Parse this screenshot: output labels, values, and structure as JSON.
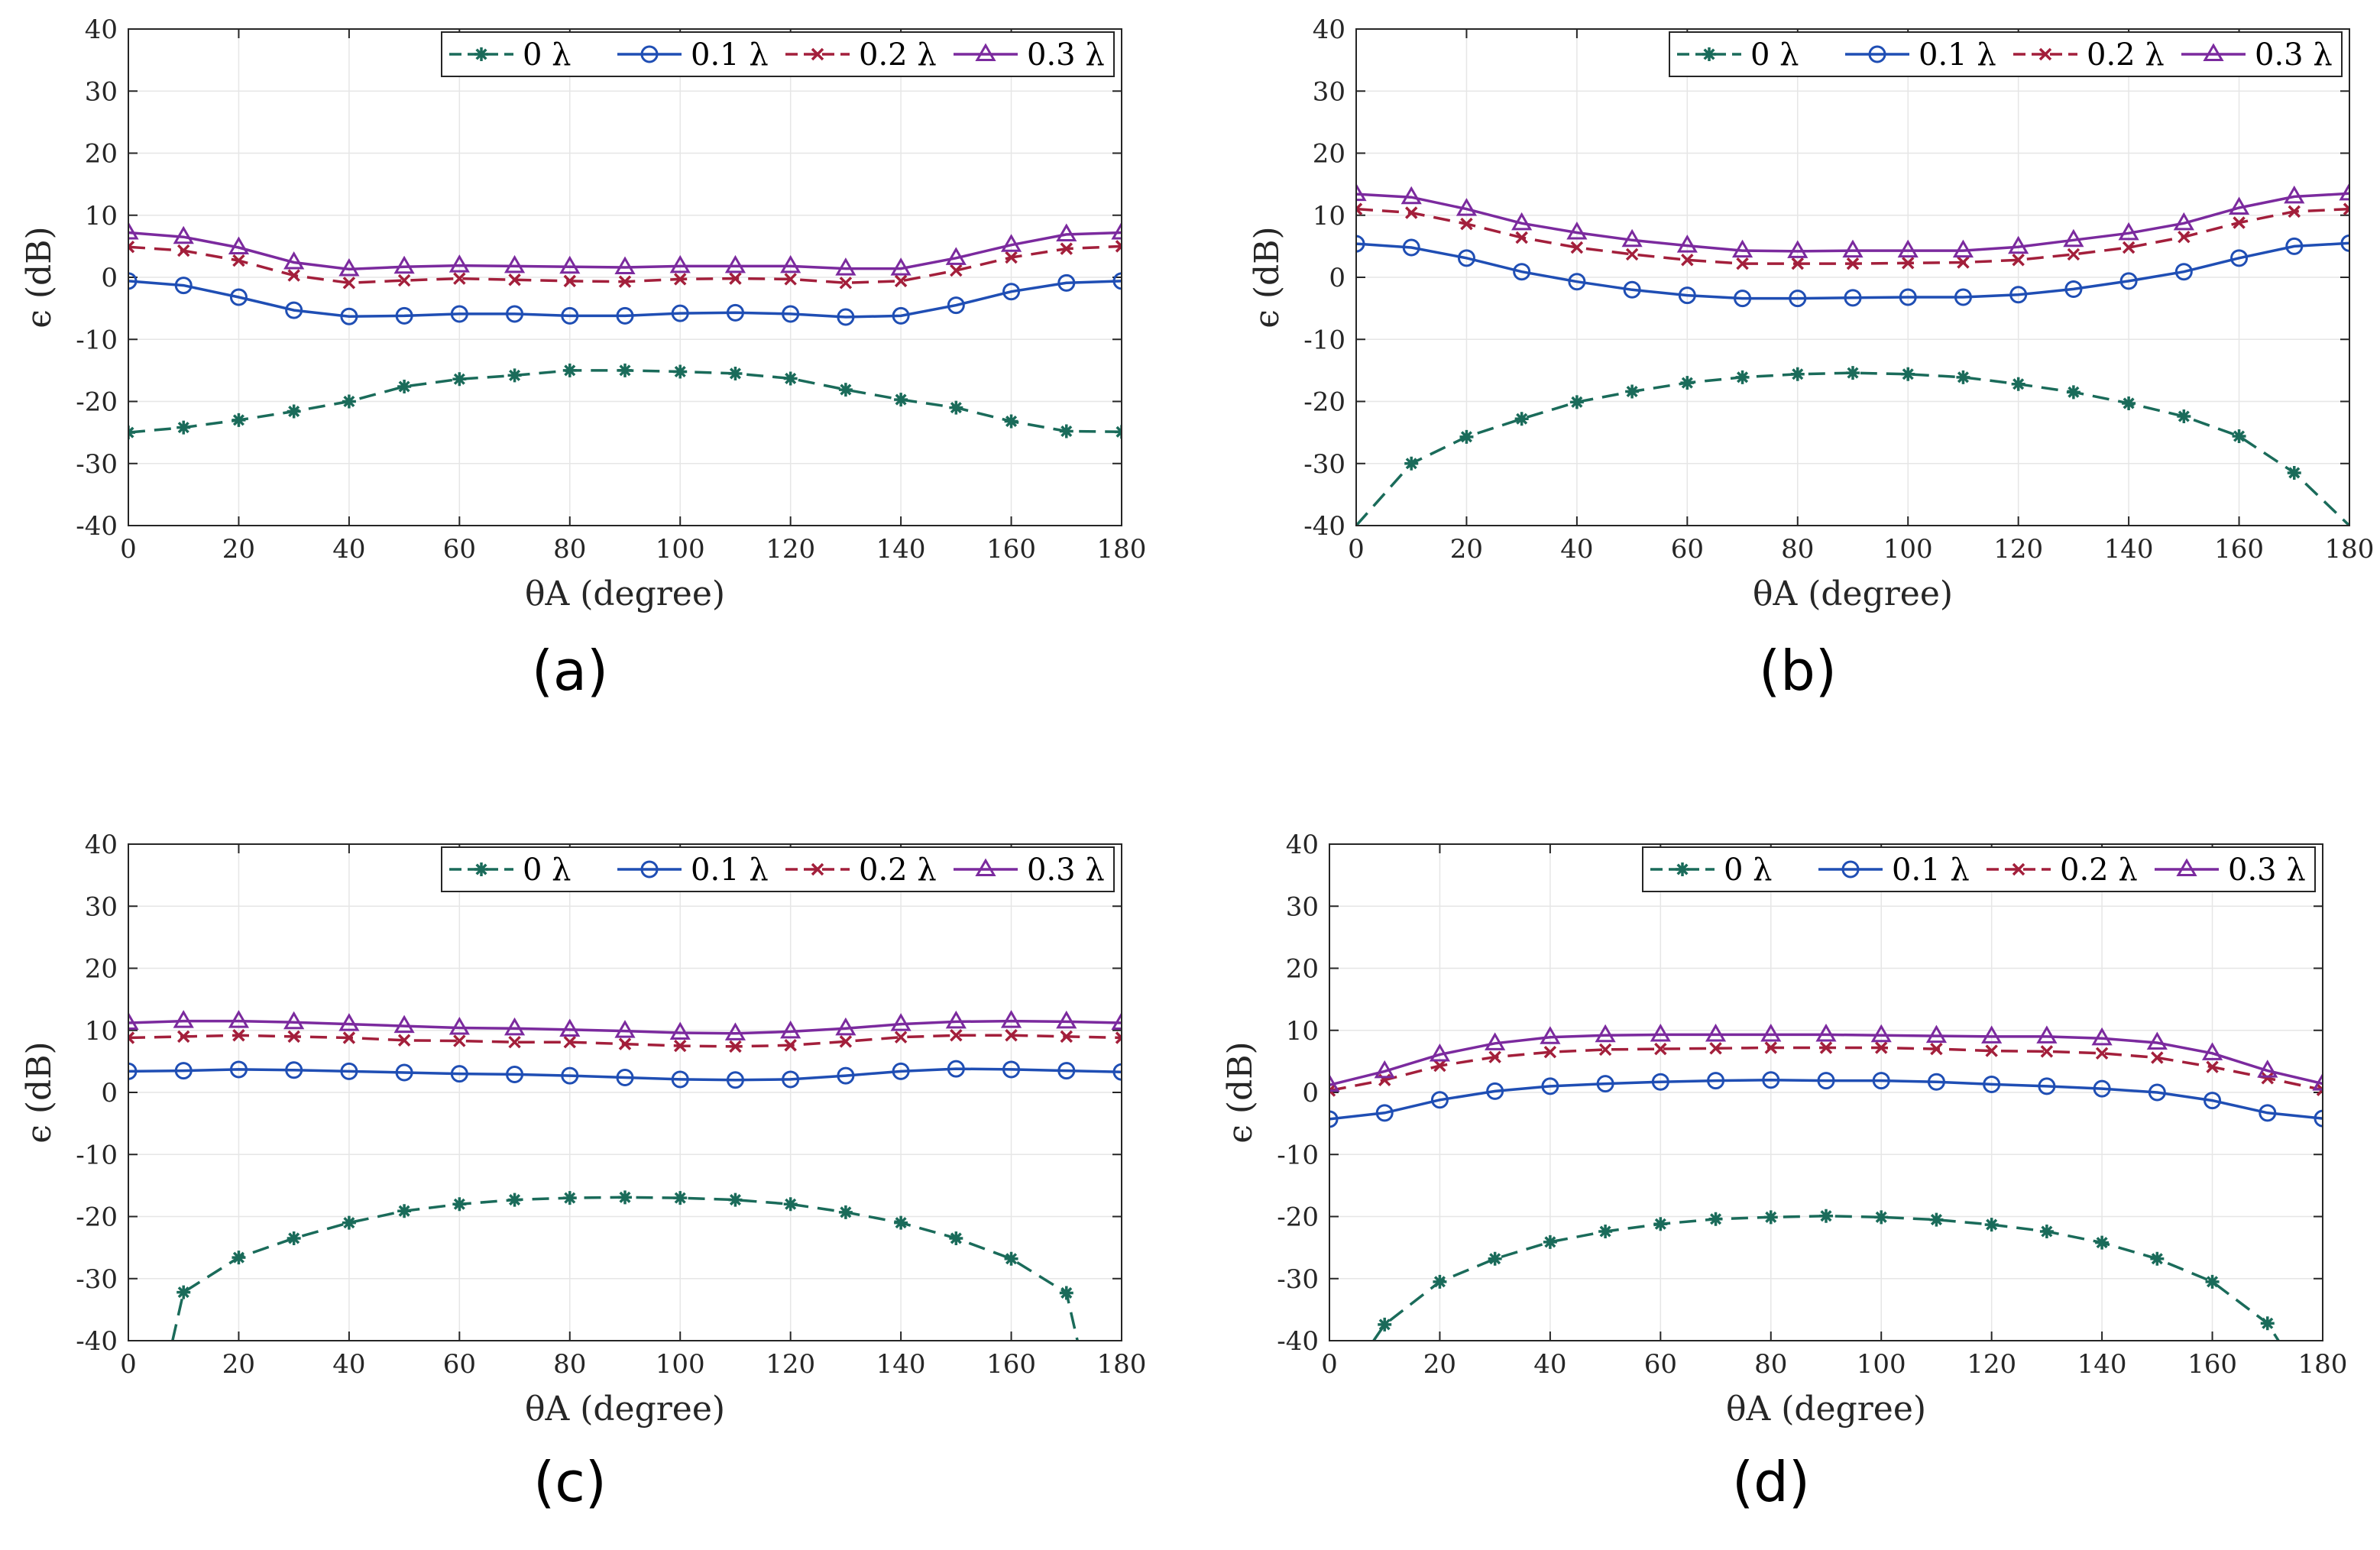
{
  "chart_data": [
    {
      "type": "line",
      "caption": "(a)",
      "xlabel": "θ_A (degree)",
      "ylabel": "ϵ (dB)",
      "xlim": [
        0,
        180
      ],
      "ylim": [
        -40,
        40
      ],
      "xticks": [
        0,
        20,
        40,
        60,
        80,
        100,
        120,
        140,
        160,
        180
      ],
      "yticks": [
        40,
        30,
        20,
        10,
        0,
        -10,
        -20,
        -30,
        -40
      ],
      "grid": true,
      "legend_position": "top-right",
      "x": [
        0,
        10,
        20,
        30,
        40,
        50,
        60,
        70,
        80,
        90,
        100,
        110,
        120,
        130,
        140,
        150,
        160,
        170,
        180
      ],
      "series": [
        {
          "name": "0 λ",
          "color": "#1a6b5a",
          "marker": "star",
          "dashed": true,
          "values": [
            -25,
            -24.2,
            -23,
            -21.6,
            -20,
            -17.6,
            -16.4,
            -15.8,
            -15,
            -15,
            -15.2,
            -15.5,
            -16.3,
            -18.1,
            -19.7,
            -21,
            -23.2,
            -24.8,
            -24.9
          ]
        },
        {
          "name": "0.1 λ",
          "color": "#1f4eb4",
          "marker": "circle",
          "dashed": false,
          "values": [
            -0.6,
            -1.3,
            -3.2,
            -5.3,
            -6.3,
            -6.2,
            -5.9,
            -5.9,
            -6.2,
            -6.2,
            -5.8,
            -5.7,
            -5.9,
            -6.4,
            -6.2,
            -4.5,
            -2.3,
            -0.9,
            -0.6
          ]
        },
        {
          "name": "0.2 λ",
          "color": "#a31f3b",
          "marker": "cross",
          "dashed": true,
          "values": [
            4.9,
            4.3,
            2.7,
            0.3,
            -0.9,
            -0.5,
            -0.2,
            -0.4,
            -0.6,
            -0.7,
            -0.3,
            -0.2,
            -0.3,
            -0.9,
            -0.6,
            1.1,
            3.2,
            4.6,
            5
          ]
        },
        {
          "name": "0.3 λ",
          "color": "#7b2a9e",
          "marker": "triangle",
          "dashed": false,
          "values": [
            7.2,
            6.5,
            4.8,
            2.4,
            1.3,
            1.7,
            1.9,
            1.8,
            1.7,
            1.6,
            1.8,
            1.8,
            1.8,
            1.4,
            1.4,
            3.1,
            5.2,
            6.9,
            7.2
          ]
        }
      ]
    },
    {
      "type": "line",
      "caption": "(b)",
      "xlabel": "θ_A (degree)",
      "ylabel": "ϵ (dB)",
      "xlim": [
        0,
        180
      ],
      "ylim": [
        -40,
        40
      ],
      "xticks": [
        0,
        20,
        40,
        60,
        80,
        100,
        120,
        140,
        160,
        180
      ],
      "yticks": [
        40,
        30,
        20,
        10,
        0,
        -10,
        -20,
        -30,
        -40
      ],
      "grid": true,
      "legend_position": "top-right",
      "x": [
        0,
        10,
        20,
        30,
        40,
        50,
        60,
        70,
        80,
        90,
        100,
        110,
        120,
        130,
        140,
        150,
        160,
        170,
        180
      ],
      "series": [
        {
          "name": "0 λ",
          "color": "#1a6b5a",
          "marker": "star",
          "dashed": true,
          "values": [
            -40,
            -30,
            -25.7,
            -22.8,
            -20.1,
            -18.4,
            -17,
            -16.1,
            -15.6,
            -15.4,
            -15.6,
            -16.1,
            -17.2,
            -18.5,
            -20.3,
            -22.4,
            -25.6,
            -31.5,
            -40
          ]
        },
        {
          "name": "0.1 λ",
          "color": "#1f4eb4",
          "marker": "circle",
          "dashed": false,
          "values": [
            5.4,
            4.8,
            3.1,
            0.9,
            -0.7,
            -2,
            -2.9,
            -3.4,
            -3.4,
            -3.3,
            -3.2,
            -3.2,
            -2.8,
            -1.9,
            -0.6,
            0.9,
            3.1,
            5,
            5.5
          ]
        },
        {
          "name": "0.2 λ",
          "color": "#a31f3b",
          "marker": "cross",
          "dashed": true,
          "values": [
            11,
            10.4,
            8.6,
            6.4,
            4.8,
            3.7,
            2.8,
            2.2,
            2.2,
            2.2,
            2.3,
            2.4,
            2.8,
            3.7,
            4.8,
            6.5,
            8.8,
            10.6,
            11
          ]
        },
        {
          "name": "0.3 λ",
          "color": "#7b2a9e",
          "marker": "triangle",
          "dashed": false,
          "values": [
            13.4,
            12.9,
            11,
            8.7,
            7.2,
            6,
            5.1,
            4.3,
            4.2,
            4.3,
            4.3,
            4.3,
            4.9,
            6,
            7.1,
            8.7,
            11.2,
            13,
            13.5
          ]
        }
      ]
    },
    {
      "type": "line",
      "caption": "(c)",
      "xlabel": "θ_A (degree)",
      "ylabel": "ϵ (dB)",
      "xlim": [
        0,
        180
      ],
      "ylim": [
        -40,
        40
      ],
      "xticks": [
        0,
        20,
        40,
        60,
        80,
        100,
        120,
        140,
        160,
        180
      ],
      "yticks": [
        40,
        30,
        20,
        10,
        0,
        -10,
        -20,
        -30,
        -40
      ],
      "grid": true,
      "legend_position": "top-right",
      "x": [
        0,
        10,
        20,
        30,
        40,
        50,
        60,
        70,
        80,
        90,
        100,
        110,
        120,
        130,
        140,
        150,
        160,
        170,
        180
      ],
      "series": [
        {
          "name": "0 λ",
          "color": "#1a6b5a",
          "marker": "star",
          "dashed": true,
          "x": [
            8,
            10,
            20,
            30,
            40,
            50,
            60,
            70,
            80,
            90,
            100,
            110,
            120,
            130,
            140,
            150,
            160,
            170,
            172
          ],
          "values": [
            -40,
            -32.2,
            -26.6,
            -23.5,
            -21,
            -19.1,
            -18,
            -17.3,
            -17,
            -16.9,
            -17,
            -17.3,
            -18,
            -19.3,
            -21,
            -23.5,
            -26.8,
            -32.3,
            -40
          ]
        },
        {
          "name": "0.1 λ",
          "color": "#1f4eb4",
          "marker": "circle",
          "dashed": false,
          "values": [
            3.4,
            3.5,
            3.7,
            3.6,
            3.4,
            3.2,
            3,
            2.9,
            2.7,
            2.4,
            2.1,
            2,
            2.1,
            2.7,
            3.4,
            3.8,
            3.7,
            3.5,
            3.3
          ]
        },
        {
          "name": "0.2 λ",
          "color": "#a31f3b",
          "marker": "cross",
          "dashed": true,
          "values": [
            8.8,
            9,
            9.2,
            9,
            8.8,
            8.4,
            8.3,
            8.1,
            8.1,
            7.8,
            7.5,
            7.4,
            7.6,
            8.2,
            8.9,
            9.2,
            9.2,
            9,
            8.8
          ]
        },
        {
          "name": "0.3 λ",
          "color": "#7b2a9e",
          "marker": "triangle",
          "dashed": false,
          "values": [
            11.2,
            11.5,
            11.5,
            11.3,
            11,
            10.7,
            10.4,
            10.3,
            10.1,
            9.9,
            9.6,
            9.5,
            9.8,
            10.3,
            11,
            11.4,
            11.5,
            11.4,
            11.2
          ]
        }
      ]
    },
    {
      "type": "line",
      "caption": "(d)",
      "xlabel": "θ_A (degree)",
      "ylabel": "ϵ (dB)",
      "xlim": [
        0,
        180
      ],
      "ylim": [
        -40,
        40
      ],
      "xticks": [
        0,
        20,
        40,
        60,
        80,
        100,
        120,
        140,
        160,
        180
      ],
      "yticks": [
        40,
        30,
        20,
        10,
        0,
        -10,
        -20,
        -30,
        -40
      ],
      "grid": true,
      "legend_position": "top-right",
      "x": [
        0,
        10,
        20,
        30,
        40,
        50,
        60,
        70,
        80,
        90,
        100,
        110,
        120,
        130,
        140,
        150,
        160,
        170,
        180
      ],
      "series": [
        {
          "name": "0 λ",
          "color": "#1a6b5a",
          "marker": "star",
          "dashed": true,
          "x": [
            8,
            10,
            20,
            30,
            40,
            50,
            60,
            70,
            80,
            90,
            100,
            110,
            120,
            130,
            140,
            150,
            160,
            170,
            172
          ],
          "values": [
            -40,
            -37.4,
            -30.5,
            -26.8,
            -24.1,
            -22.4,
            -21.2,
            -20.4,
            -20.1,
            -19.9,
            -20.1,
            -20.5,
            -21.3,
            -22.4,
            -24.2,
            -26.8,
            -30.5,
            -37.2,
            -40
          ]
        },
        {
          "name": "0.1 λ",
          "color": "#1f4eb4",
          "marker": "circle",
          "dashed": false,
          "values": [
            -4.3,
            -3.3,
            -1.2,
            0.2,
            1,
            1.4,
            1.7,
            1.9,
            2,
            1.9,
            1.9,
            1.7,
            1.3,
            1,
            0.6,
            0,
            -1.3,
            -3.3,
            -4.2
          ]
        },
        {
          "name": "0.2 λ",
          "color": "#a31f3b",
          "marker": "cross",
          "dashed": true,
          "values": [
            0.3,
            2,
            4.3,
            5.7,
            6.5,
            6.9,
            7,
            7.1,
            7.2,
            7.2,
            7.2,
            7,
            6.7,
            6.6,
            6.3,
            5.6,
            4.1,
            2.3,
            0.4
          ]
        },
        {
          "name": "0.3 λ",
          "color": "#7b2a9e",
          "marker": "triangle",
          "dashed": false,
          "values": [
            1.2,
            3.4,
            6.1,
            7.9,
            8.9,
            9.2,
            9.3,
            9.3,
            9.3,
            9.3,
            9.2,
            9.1,
            9,
            9,
            8.7,
            8,
            6.3,
            3.5,
            1.4
          ]
        }
      ]
    }
  ]
}
